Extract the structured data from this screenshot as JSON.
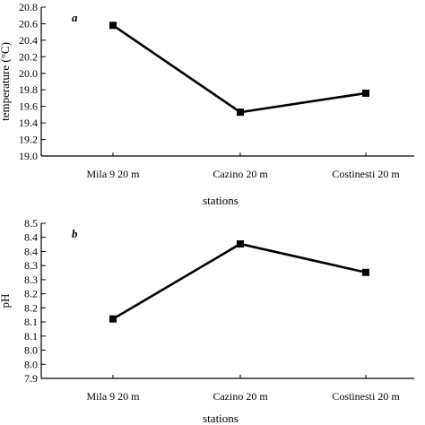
{
  "chart_data": [
    {
      "type": "line",
      "panel_label": "a",
      "categories": [
        "Mila 9 20 m",
        "Cazino 20 m",
        "Costinesti 20 m"
      ],
      "values": [
        20.58,
        19.53,
        19.76
      ],
      "xlabel": "stations",
      "ylabel": "temperature (°C)",
      "ylim": [
        19.0,
        20.8
      ],
      "yticks": [
        "19.0",
        "19.2",
        "19.4",
        "19.6",
        "19.8",
        "20.0",
        "20.2",
        "20.4",
        "20.6",
        "20.8"
      ],
      "grid": false,
      "color": "#000000"
    },
    {
      "type": "line",
      "panel_label": "b",
      "categories": [
        "Mila 9 20 m",
        "Cazino 20 m",
        "Costinesti 20 m"
      ],
      "values": [
        8.13,
        8.42,
        8.31
      ],
      "xlabel": "stations",
      "ylabel": "pH",
      "ylim": [
        7.9,
        8.5
      ],
      "yticks": [
        "7.9",
        "8.0",
        "8.0",
        "8.1",
        "8.1",
        "8.2",
        "8.2",
        "8.3",
        "8.3",
        "8.4",
        "8.4",
        "8.5"
      ],
      "grid": false,
      "color": "#000000"
    }
  ]
}
